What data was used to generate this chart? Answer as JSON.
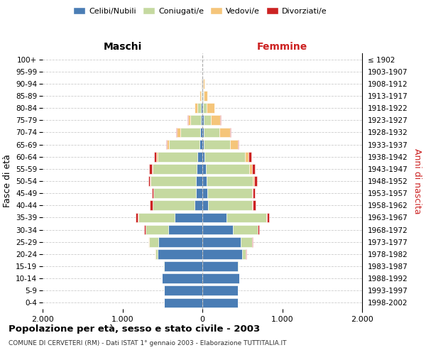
{
  "age_groups": [
    "0-4",
    "5-9",
    "10-14",
    "15-19",
    "20-24",
    "25-29",
    "30-34",
    "35-39",
    "40-44",
    "45-49",
    "50-54",
    "55-59",
    "60-64",
    "65-69",
    "70-74",
    "75-79",
    "80-84",
    "85-89",
    "90-94",
    "95-99",
    "100+"
  ],
  "birth_years": [
    "1998-2002",
    "1993-1997",
    "1988-1992",
    "1983-1987",
    "1978-1982",
    "1973-1977",
    "1968-1972",
    "1963-1967",
    "1958-1962",
    "1953-1957",
    "1948-1952",
    "1943-1947",
    "1938-1942",
    "1933-1937",
    "1928-1932",
    "1923-1927",
    "1918-1922",
    "1913-1917",
    "1908-1912",
    "1903-1907",
    "≤ 1902"
  ],
  "colors": {
    "celibi": "#4a7db5",
    "coniugati": "#c5d9a0",
    "vedovi": "#f5c57a",
    "divorziati": "#cc2222"
  },
  "maschi": {
    "celibi": [
      480,
      480,
      510,
      480,
      560,
      550,
      430,
      350,
      100,
      80,
      80,
      75,
      60,
      40,
      30,
      20,
      15,
      10,
      5,
      0,
      0
    ],
    "coniugati": [
      0,
      0,
      0,
      5,
      30,
      120,
      280,
      450,
      520,
      530,
      570,
      550,
      500,
      380,
      250,
      130,
      50,
      10,
      5,
      0,
      0
    ],
    "vedovi": [
      0,
      0,
      0,
      0,
      5,
      5,
      5,
      5,
      5,
      5,
      5,
      10,
      15,
      25,
      40,
      30,
      30,
      15,
      5,
      0,
      0
    ],
    "divorziati": [
      0,
      0,
      0,
      0,
      5,
      5,
      10,
      30,
      30,
      20,
      25,
      30,
      30,
      5,
      5,
      5,
      0,
      0,
      0,
      0,
      0
    ]
  },
  "femmine": {
    "celibi": [
      440,
      440,
      460,
      440,
      500,
      480,
      380,
      300,
      75,
      60,
      50,
      40,
      30,
      20,
      15,
      15,
      10,
      5,
      5,
      0,
      0
    ],
    "coniugati": [
      0,
      0,
      0,
      10,
      40,
      140,
      310,
      500,
      550,
      560,
      580,
      550,
      500,
      330,
      200,
      90,
      40,
      10,
      5,
      0,
      0
    ],
    "vedovi": [
      0,
      0,
      0,
      0,
      5,
      5,
      5,
      5,
      10,
      15,
      20,
      30,
      50,
      90,
      130,
      120,
      100,
      50,
      20,
      2,
      0
    ],
    "divorziati": [
      0,
      0,
      0,
      0,
      5,
      5,
      15,
      30,
      30,
      25,
      30,
      35,
      30,
      15,
      10,
      5,
      5,
      0,
      0,
      0,
      0
    ]
  },
  "xlim": 2000,
  "title": "Popolazione per età, sesso e stato civile - 2003",
  "subtitle": "COMUNE DI CERVETERI (RM) - Dati ISTAT 1° gennaio 2003 - Elaborazione TUTTITALIA.IT",
  "xlabel_left": "Maschi",
  "xlabel_right": "Femmine",
  "ylabel": "Fasce di età",
  "ylabel_right": "Anni di nascita",
  "xtick_labels": [
    "2.000",
    "1.000",
    "0",
    "1.000",
    "2.000"
  ]
}
